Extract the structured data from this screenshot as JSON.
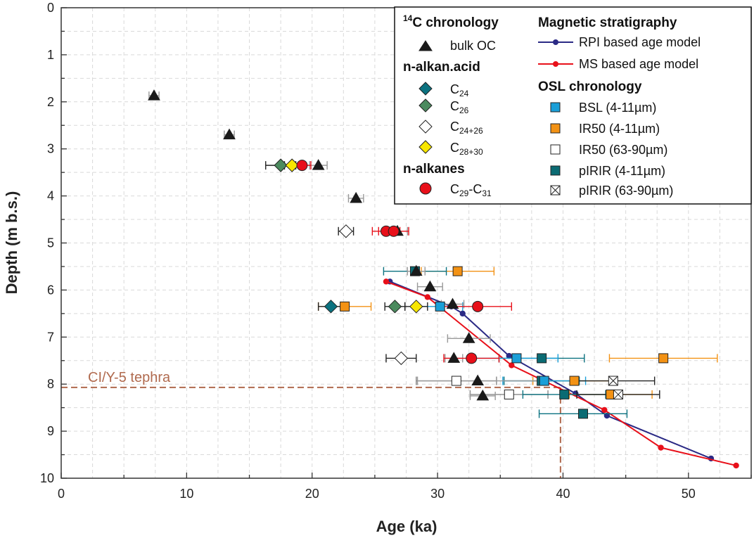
{
  "colors": {
    "grid": "#d9d9d9",
    "axis": "#333333",
    "bulk_oc": "#1a1a1a",
    "bulk_oc_err": "#999999",
    "c24": "#0b7280",
    "c26": "#4b8a5e",
    "c24_26": "#ffffff",
    "c28_30": "#f7e600",
    "alkanes": "#e8101a",
    "rpi": "#2b2a85",
    "ms": "#e8101a",
    "bsl": "#1a9fd8",
    "ir50_fine": "#f39214",
    "ir50_coarse": "#ffffff",
    "pirir_fine": "#0b6b73",
    "pirir_coarse": "#ffffff",
    "tephra": "#b06a4e"
  },
  "chart_data": {
    "type": "scatter",
    "xlabel": "Age (ka)",
    "ylabel": "Depth (m b.s.)",
    "xlim": [
      0,
      55
    ],
    "ylim": [
      0,
      10
    ],
    "y_inverted": true,
    "grid": true,
    "xticks": [
      0,
      10,
      20,
      30,
      40,
      50
    ],
    "yticks": [
      0,
      1,
      2,
      3,
      4,
      5,
      6,
      7,
      8,
      9,
      10
    ],
    "xtick_labels": [
      "0",
      "10",
      "20",
      "30",
      "40",
      "50"
    ],
    "ytick_labels": [
      "0",
      "1",
      "2",
      "3",
      "4",
      "5",
      "6",
      "7",
      "8",
      "9",
      "10"
    ],
    "legend": {
      "position": "top-right",
      "col1": {
        "c14_head_sup": "14",
        "c14_head_text": "C chronology",
        "bulk_oc": "bulk OC",
        "acid_head": "n-alkan.acid",
        "c24_base": "C",
        "c24_sub": "24",
        "c26_base": "C",
        "c26_sub": "26",
        "c2426_base": "C",
        "c2426_sub": "24+26",
        "c2830_base": "C",
        "c2830_sub": "28+30",
        "alk_head": "n-alkanes",
        "c29_a": "C",
        "c29_sub1": "29",
        "c29_mid": "-C",
        "c29_sub2": "31"
      },
      "col2": {
        "mag_head": "Magnetic stratigraphy",
        "rpi": "RPI based age model",
        "ms": "MS based age model",
        "osl_head": "OSL chronology",
        "bsl": "BSL (4-11µm)",
        "ir50_fine": "IR50 (4-11µm)",
        "ir50_coarse": "IR50 (63-90µm)",
        "pirir_fine": "pIRIR (4-11µm)",
        "pirir_coarse": "pIRIR (63-90µm)"
      }
    },
    "annotation": {
      "text": "CI/Y-5 tephra",
      "depth": 8.07,
      "age": 39.8
    },
    "series": [
      {
        "name": "bulk OC",
        "marker": "triangle",
        "color_key": "bulk_oc",
        "err_key": "bulk_oc_err",
        "points": [
          {
            "x": 7.4,
            "y": 1.87,
            "err": 0.4
          },
          {
            "x": 13.4,
            "y": 2.7,
            "err": 0.4
          },
          {
            "x": 20.5,
            "y": 3.35,
            "err": 0.7
          },
          {
            "x": 23.5,
            "y": 4.05,
            "err": 0.6
          },
          {
            "x": 26.8,
            "y": 4.75,
            "err": 0.8
          },
          {
            "x": 28.3,
            "y": 5.6,
            "err": 0.7
          },
          {
            "x": 29.4,
            "y": 5.93,
            "err": 1.0
          },
          {
            "x": 31.2,
            "y": 6.3,
            "err": 0.9
          },
          {
            "x": 32.5,
            "y": 7.03,
            "err": 1.7
          },
          {
            "x": 31.3,
            "y": 7.45,
            "err": 0.7
          },
          {
            "x": 33.2,
            "y": 7.93,
            "err": 4.8
          },
          {
            "x": 33.6,
            "y": 8.25,
            "err": 1.0
          }
        ]
      },
      {
        "name": "C24",
        "marker": "diamond",
        "color_key": "c24",
        "err_color": "#222222",
        "points": [
          {
            "x": 21.5,
            "y": 6.35,
            "err": 1.0
          }
        ]
      },
      {
        "name": "C26",
        "marker": "diamond",
        "color_key": "c26",
        "err_color": "#222222",
        "points": [
          {
            "x": 17.5,
            "y": 3.35,
            "err": 1.2
          },
          {
            "x": 26.6,
            "y": 6.35,
            "err": 0.8
          }
        ]
      },
      {
        "name": "C24+26",
        "marker": "diamond",
        "color_key": "c24_26",
        "err_color": "#222222",
        "points": [
          {
            "x": 22.7,
            "y": 4.75,
            "err": 0.6
          },
          {
            "x": 27.1,
            "y": 7.45,
            "err": 1.2
          }
        ]
      },
      {
        "name": "C28+30",
        "marker": "diamond",
        "color_key": "c28_30",
        "err_color": "#222222",
        "points": [
          {
            "x": 18.4,
            "y": 3.35,
            "err": 0.6
          },
          {
            "x": 28.3,
            "y": 6.35,
            "err": 0.9
          }
        ]
      },
      {
        "name": "C29-C31",
        "marker": "circle",
        "color_key": "alkanes",
        "err_color": "#e8101a",
        "points": [
          {
            "x": 19.2,
            "y": 3.35,
            "err": 0.7
          },
          {
            "x": 25.9,
            "y": 4.75,
            "err": 1.1
          },
          {
            "x": 26.5,
            "y": 4.75,
            "err": 1.2
          },
          {
            "x": 33.2,
            "y": 6.35,
            "err": 2.7
          },
          {
            "x": 32.7,
            "y": 7.45,
            "err": 2.2
          }
        ]
      },
      {
        "name": "BSL (4-11µm)",
        "marker": "square",
        "color_key": "bsl",
        "err_color": "#1a9fd8",
        "points": [
          {
            "x": 30.2,
            "y": 6.35,
            "err": 1.8
          },
          {
            "x": 36.3,
            "y": 7.45,
            "err": 3.3
          },
          {
            "x": 38.5,
            "y": 7.93,
            "err": 3.3
          }
        ]
      },
      {
        "name": "IR50 (4-11µm)",
        "marker": "square",
        "color_key": "ir50_fine",
        "err_color": "#f39214",
        "points": [
          {
            "x": 31.6,
            "y": 5.6,
            "err": 2.9
          },
          {
            "x": 22.6,
            "y": 6.35,
            "err": 2.1
          },
          {
            "x": 48.0,
            "y": 7.45,
            "err": 4.3
          },
          {
            "x": 40.9,
            "y": 7.93,
            "err": 3.3
          },
          {
            "x": 43.8,
            "y": 8.22,
            "err": 3.3
          }
        ]
      },
      {
        "name": "IR50 (63-90µm)",
        "marker": "square",
        "color_key": "ir50_coarse",
        "err_color": "#888888",
        "points": [
          {
            "x": 31.5,
            "y": 7.93,
            "err": 3.2
          },
          {
            "x": 35.7,
            "y": 8.22,
            "err": 3.1
          }
        ]
      },
      {
        "name": "pIRIR (4-11µm)",
        "marker": "square",
        "color_key": "pirir_fine",
        "err_color": "#0b7280",
        "points": [
          {
            "x": 28.2,
            "y": 5.6,
            "err": 2.5
          },
          {
            "x": 38.3,
            "y": 7.45,
            "err": 3.4
          },
          {
            "x": 38.3,
            "y": 7.93,
            "err": 3.0
          },
          {
            "x": 40.1,
            "y": 8.22,
            "err": 3.3
          },
          {
            "x": 41.6,
            "y": 8.63,
            "err": 3.5
          }
        ]
      },
      {
        "name": "pIRIR (63-90µm)",
        "marker": "squarex",
        "color_key": "pirir_coarse",
        "err_color": "#222222",
        "points": [
          {
            "x": 44.0,
            "y": 7.93,
            "err": 3.3
          },
          {
            "x": 44.4,
            "y": 8.22,
            "err": 3.3
          }
        ]
      }
    ],
    "lines": [
      {
        "name": "RPI based age model",
        "color_key": "rpi",
        "x": [
          26.2,
          31.1,
          32.0,
          35.7,
          41.0,
          43.5,
          51.8
        ],
        "y": [
          5.82,
          6.35,
          6.5,
          7.4,
          8.2,
          8.67,
          9.58
        ]
      },
      {
        "name": "MS based age model",
        "color_key": "ms",
        "x": [
          25.9,
          29.2,
          35.9,
          43.3,
          47.8,
          53.8
        ],
        "y": [
          5.82,
          6.15,
          7.6,
          8.55,
          9.35,
          9.73
        ]
      }
    ]
  }
}
